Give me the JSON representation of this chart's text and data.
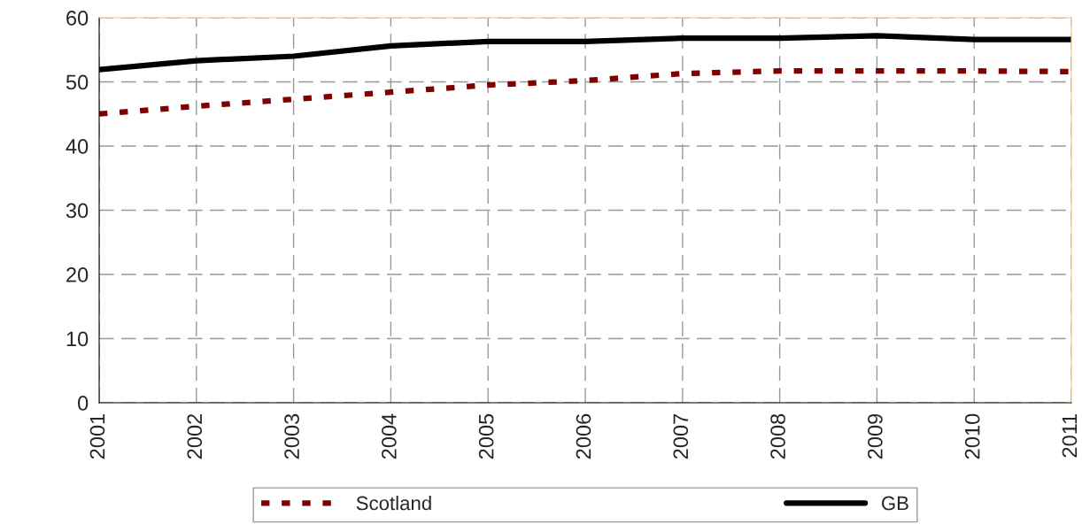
{
  "chart_data": {
    "type": "line",
    "x": [
      "2001",
      "2002",
      "2003",
      "2004",
      "2005",
      "2006",
      "2007",
      "2008",
      "2009",
      "2010",
      "2011"
    ],
    "series": [
      {
        "name": "Scotland",
        "color": "#800000",
        "line_style": "dashed",
        "values": [
          45.0,
          46.2,
          47.3,
          48.4,
          49.5,
          50.2,
          51.3,
          51.7,
          51.7,
          51.7,
          51.6
        ]
      },
      {
        "name": "GB",
        "color": "#000000",
        "line_style": "solid",
        "values": [
          51.9,
          53.3,
          54.0,
          55.6,
          56.3,
          56.3,
          56.8,
          56.8,
          57.2,
          56.6,
          56.6
        ]
      }
    ],
    "xlim": [
      "2001",
      "2011"
    ],
    "xticks": [
      "2001",
      "2002",
      "2003",
      "2004",
      "2005",
      "2006",
      "2007",
      "2008",
      "2009",
      "2010",
      "2011"
    ],
    "ylim": [
      0,
      60
    ],
    "yticks": [
      0,
      10,
      20,
      30,
      40,
      50,
      60
    ],
    "grid": true,
    "legend": "bottom",
    "marker": "none"
  }
}
